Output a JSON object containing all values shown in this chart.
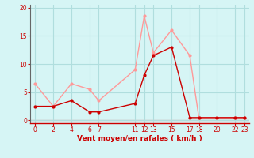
{
  "x_mean": [
    0,
    2,
    4,
    6,
    7,
    11,
    12,
    13,
    15,
    17,
    18,
    20,
    22,
    23
  ],
  "y_mean": [
    2.5,
    2.5,
    3.5,
    1.5,
    1.5,
    3.0,
    8.0,
    11.5,
    13.0,
    0.5,
    0.5,
    0.5,
    0.5,
    0.5
  ],
  "x_gust": [
    0,
    2,
    4,
    6,
    7,
    11,
    12,
    13,
    15,
    17,
    18,
    20,
    22,
    23
  ],
  "y_gust": [
    6.5,
    2.5,
    6.5,
    5.5,
    3.5,
    9.0,
    18.5,
    12.0,
    16.0,
    11.5,
    0.5,
    0.5,
    0.5,
    0.5
  ],
  "bg_color": "#d6f5f5",
  "grid_color": "#b0dede",
  "mean_color": "#cc0000",
  "gust_color": "#ff9999",
  "xlabel": "Vent moyen/en rafales ( km/h )",
  "xlabel_color": "#cc0000",
  "tick_color": "#cc0000",
  "xlim": [
    -0.5,
    23.5
  ],
  "ylim": [
    -0.5,
    20.5
  ],
  "xticks": [
    0,
    2,
    4,
    6,
    7,
    11,
    12,
    13,
    15,
    17,
    18,
    20,
    22,
    23
  ],
  "yticks": [
    0,
    5,
    10,
    15,
    20
  ],
  "axis_line_color": "#cc0000",
  "left_spine_color": "#666666"
}
